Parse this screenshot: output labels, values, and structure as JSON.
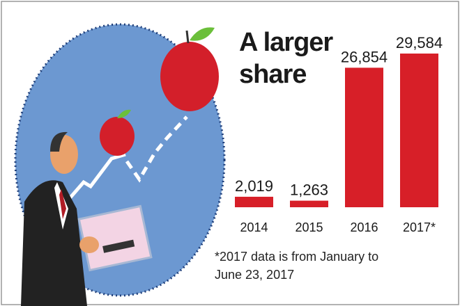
{
  "chart_data": {
    "type": "bar",
    "title": "A larger share",
    "categories": [
      "2014",
      "2015",
      "2016",
      "2017*"
    ],
    "values": [
      2019,
      1263,
      26854,
      29584
    ],
    "value_labels": [
      "2,019",
      "1,263",
      "26,854",
      "29,584"
    ],
    "color": "#d71f28",
    "note": "*2017 data is from January to June 23, 2017"
  }
}
